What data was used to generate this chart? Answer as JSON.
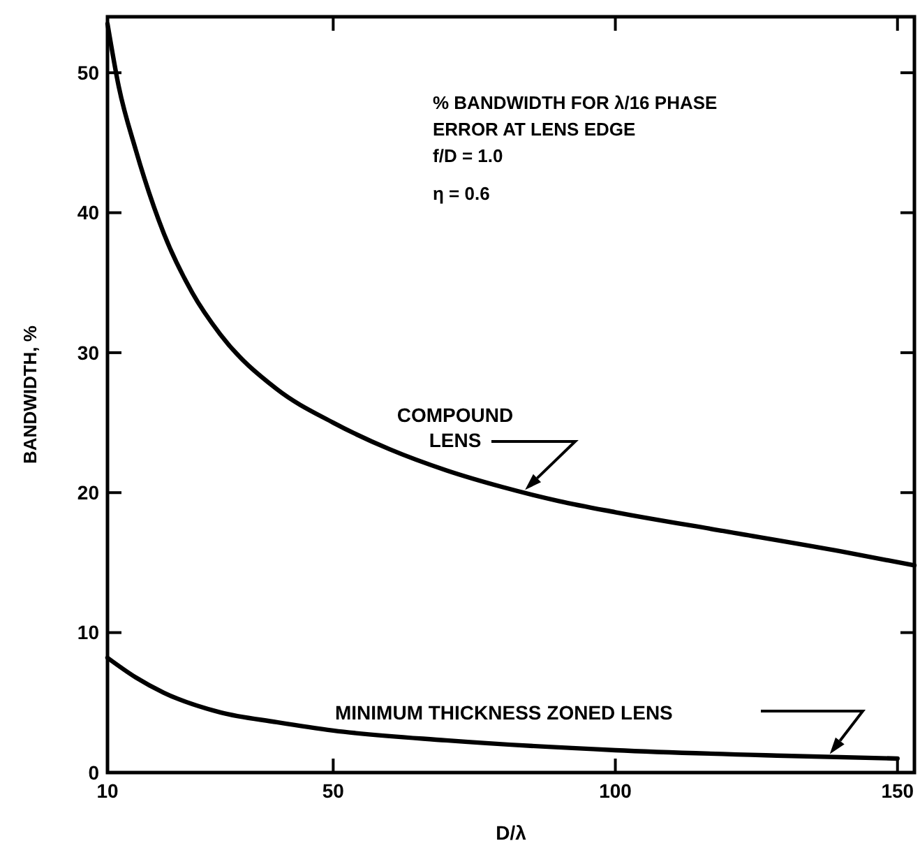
{
  "chart_data": {
    "type": "line",
    "xlabel": "D/λ",
    "ylabel": "BANDWIDTH, %",
    "xlim": [
      10,
      153
    ],
    "ylim": [
      0,
      54
    ],
    "xticks": [
      10,
      50,
      100,
      150
    ],
    "yticks": [
      0,
      10,
      20,
      30,
      40,
      50
    ],
    "grid": false,
    "marker": "none",
    "line_style": "solid",
    "annotations": [
      "% BANDWIDTH FOR  λ/16 PHASE",
      "ERROR AT LENS EDGE",
      "f/D = 1.0",
      "η    = 0.6"
    ],
    "series": [
      {
        "name": "COMPOUND LENS",
        "color": "#000000",
        "x": [
          10,
          12,
          15,
          20,
          25,
          30,
          40,
          50,
          60,
          70,
          80,
          90,
          100,
          120,
          140,
          153
        ],
        "values": [
          53.5,
          49,
          44.5,
          38.5,
          34.3,
          31.3,
          27.4,
          25,
          23.1,
          21.6,
          20.4,
          19.4,
          18.6,
          17.2,
          15.8,
          14.8
        ]
      },
      {
        "name": "MINIMUM THICKNESS ZONED LENS",
        "color": "#000000",
        "x": [
          10,
          15,
          20,
          30,
          40,
          50,
          70,
          100,
          130,
          150
        ],
        "values": [
          8.2,
          6.8,
          5.7,
          4.3,
          3.6,
          3.0,
          2.3,
          1.6,
          1.2,
          1.0
        ]
      }
    ]
  }
}
